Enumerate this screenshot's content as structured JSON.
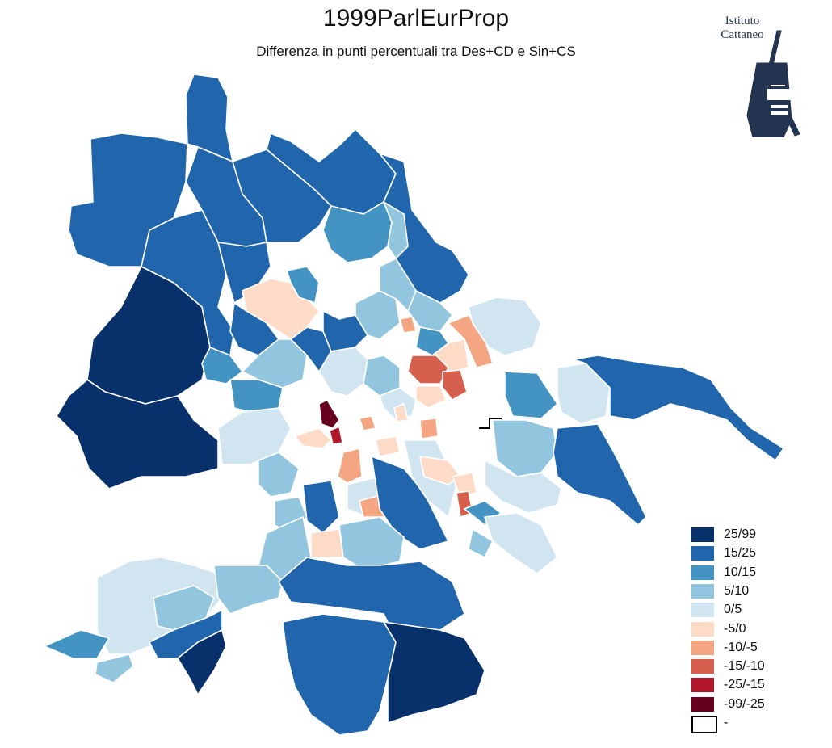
{
  "title": "1999ParlEurProp",
  "subtitle": "Differenza in punti percentuali tra Des+CD e Sin+CS",
  "logo": {
    "line1": "Istituto",
    "line2": "Cattaneo",
    "icon": "windmill-icon",
    "color": "#22344f"
  },
  "legend": [
    {
      "label": "25/99",
      "color": "#08306b"
    },
    {
      "label": "15/25",
      "color": "#2166ac"
    },
    {
      "label": "10/15",
      "color": "#4393c3"
    },
    {
      "label": "5/10",
      "color": "#92c5de"
    },
    {
      "label": "0/5",
      "color": "#d1e5f0"
    },
    {
      "label": "-5/0",
      "color": "#fddbc7"
    },
    {
      "label": "-10/-5",
      "color": "#f4a582"
    },
    {
      "label": "-15/-10",
      "color": "#d6604d"
    },
    {
      "label": "-25/-15",
      "color": "#b2182b"
    },
    {
      "label": "-99/-25",
      "color": "#67001f"
    },
    {
      "label": "-",
      "color": "#ffffff"
    }
  ]
}
